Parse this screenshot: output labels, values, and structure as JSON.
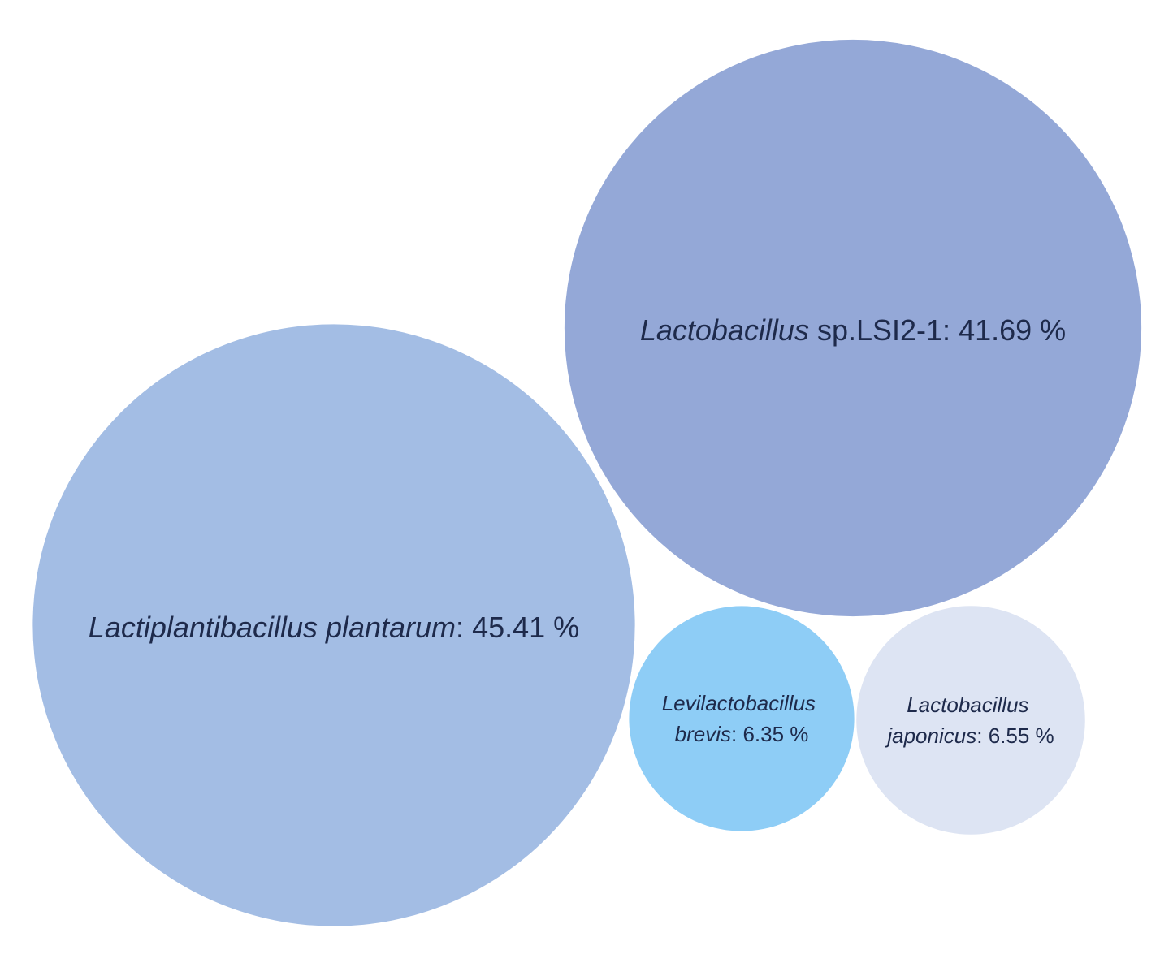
{
  "chart_data": {
    "type": "bubble",
    "categories": [
      "Lactiplantibacillus plantarum",
      "Lactobacillus sp.LSI2-1",
      "Levilactobacillus brevis",
      "Lactobacillus japonicus"
    ],
    "italic_words": [
      2,
      1,
      2,
      2
    ],
    "label_separator": ":",
    "values": [
      45.41,
      41.69,
      6.35,
      6.55
    ],
    "value_labels": [
      "45.41 %",
      "41.69 %",
      "6.35 %",
      "6.55 %"
    ],
    "colors": [
      "#a3bde4",
      "#94a8d7",
      "#8ecdf6",
      "#dde4f3"
    ]
  }
}
